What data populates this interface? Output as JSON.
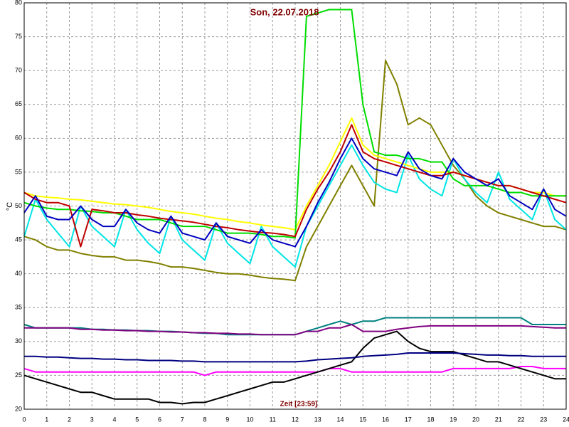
{
  "chart_data": {
    "type": "line",
    "title": "Son, 22.07.2018",
    "x_label": "Zeit [23:59]",
    "y_label": "°C",
    "x": [
      0,
      0.5,
      1,
      1.5,
      2,
      2.5,
      3,
      3.5,
      4,
      4.5,
      5,
      5.5,
      6,
      6.5,
      7,
      7.5,
      8,
      8.5,
      9,
      9.5,
      10,
      10.5,
      11,
      11.5,
      12,
      12.5,
      13,
      13.5,
      14,
      14.5,
      15,
      15.5,
      16,
      16.5,
      17,
      17.5,
      18,
      18.5,
      19,
      19.5,
      20,
      20.5,
      21,
      21.5,
      22,
      22.5,
      23,
      23.5,
      24
    ],
    "xlim": [
      0,
      24
    ],
    "xticks": [
      0,
      1,
      2,
      3,
      4,
      5,
      6,
      7,
      8,
      9,
      10,
      11,
      12,
      13,
      14,
      15,
      16,
      17,
      18,
      19,
      20,
      21,
      22,
      23,
      24
    ],
    "ylim": [
      20,
      80
    ],
    "yticks": [
      20,
      25,
      30,
      35,
      40,
      45,
      50,
      55,
      60,
      65,
      70,
      75,
      80
    ],
    "grid": true,
    "series": [
      {
        "color": "#ff00ff",
        "values": [
          26,
          25.5,
          25.5,
          25.5,
          25.5,
          25.5,
          25.5,
          25.5,
          25.5,
          25.5,
          25.5,
          25.5,
          25.5,
          25.5,
          25.5,
          25.5,
          25,
          25.5,
          25.5,
          25.5,
          25.5,
          25.5,
          25.5,
          25.5,
          25.5,
          25.5,
          25.5,
          26,
          26,
          25.5,
          25.5,
          25.5,
          25.5,
          25.5,
          25.5,
          25.5,
          25.5,
          25.5,
          26,
          26,
          26,
          26,
          26,
          26,
          26.3,
          26.3,
          26,
          26,
          26
        ]
      },
      {
        "color": "#000000",
        "values": [
          25,
          24.5,
          24,
          23.5,
          23,
          22.5,
          22.5,
          22,
          21.5,
          21.5,
          21.5,
          21.5,
          21,
          21,
          20.8,
          21,
          21,
          21.5,
          22,
          22.5,
          23,
          23.5,
          24,
          24,
          24.5,
          25,
          25.5,
          26,
          26.5,
          27,
          29,
          30.5,
          31,
          31.5,
          30,
          29,
          28.5,
          28.5,
          28.5,
          28,
          27.5,
          27,
          27,
          26.5,
          26,
          25.5,
          25,
          24.5,
          24.5
        ]
      },
      {
        "color": "#000080",
        "values": [
          27.8,
          27.8,
          27.7,
          27.7,
          27.6,
          27.5,
          27.5,
          27.4,
          27.4,
          27.3,
          27.3,
          27.2,
          27.2,
          27.2,
          27.1,
          27.1,
          27,
          27,
          27,
          27,
          27,
          27,
          27,
          27,
          27,
          27.1,
          27.3,
          27.4,
          27.5,
          27.6,
          27.8,
          27.9,
          28,
          28.1,
          28.3,
          28.3,
          28.3,
          28.3,
          28.3,
          28.2,
          28.1,
          28,
          28,
          27.9,
          27.9,
          27.8,
          27.8,
          27.8,
          27.8
        ]
      },
      {
        "color": "#008080",
        "values": [
          32.5,
          32,
          32,
          32,
          32,
          32,
          31.8,
          31.8,
          31.7,
          31.7,
          31.6,
          31.6,
          31.5,
          31.5,
          31.4,
          31.3,
          31.2,
          31.2,
          31,
          31,
          31,
          31,
          31,
          31,
          31,
          31.5,
          32,
          32.5,
          33,
          32.5,
          33,
          33,
          33.5,
          33.5,
          33.5,
          33.5,
          33.5,
          33.5,
          33.5,
          33.5,
          33.5,
          33.5,
          33.5,
          33.5,
          33.5,
          32.5,
          32.5,
          32.5,
          32.5
        ]
      },
      {
        "color": "#800080",
        "values": [
          32,
          32,
          32,
          32,
          32,
          31.8,
          31.8,
          31.7,
          31.7,
          31.6,
          31.6,
          31.5,
          31.5,
          31.4,
          31.4,
          31.3,
          31.3,
          31.2,
          31.2,
          31.1,
          31.1,
          31,
          31,
          31,
          31,
          31.5,
          31.5,
          32,
          32,
          32.5,
          31.5,
          31.5,
          31.5,
          31.8,
          32,
          32.2,
          32.3,
          32.3,
          32.3,
          32.3,
          32.3,
          32.3,
          32.3,
          32.3,
          32.3,
          32.2,
          32.1,
          32,
          32
        ]
      },
      {
        "color": "#808000",
        "values": [
          45.5,
          45,
          44,
          43.5,
          43.5,
          43,
          42.7,
          42.5,
          42.5,
          42,
          42,
          41.8,
          41.5,
          41,
          41,
          40.8,
          40.5,
          40.2,
          40,
          40,
          39.8,
          39.5,
          39.3,
          39.2,
          39,
          44,
          47,
          50,
          53,
          56,
          53,
          50,
          71.5,
          68,
          62,
          63,
          62,
          59,
          56,
          54,
          51.5,
          50,
          49,
          48.5,
          48,
          47.5,
          47,
          47,
          46.5
        ]
      },
      {
        "color": "#00e5e5",
        "values": [
          45.5,
          51,
          48,
          46,
          44,
          50,
          47,
          45.5,
          44,
          49.5,
          46.5,
          44.5,
          43,
          48.5,
          45,
          43.5,
          42,
          47.5,
          44.5,
          43,
          41.5,
          47,
          44,
          42.5,
          41,
          47,
          50,
          53,
          56,
          59,
          56,
          53.5,
          52.5,
          52,
          57.5,
          54,
          52.5,
          51.5,
          57,
          54,
          52,
          50.5,
          55,
          51,
          49.5,
          48,
          52.5,
          48,
          46.5
        ]
      },
      {
        "color": "#ffff00",
        "values": [
          52,
          51.5,
          51.3,
          51.2,
          51,
          50.9,
          50.7,
          50.5,
          50.3,
          50.2,
          50,
          49.8,
          49.5,
          49.2,
          49,
          48.8,
          48.5,
          48.2,
          48,
          47.7,
          47.5,
          47.2,
          47,
          46.8,
          46.5,
          50,
          53,
          56,
          59.5,
          63,
          59,
          57.5,
          57,
          56.5,
          56,
          55.5,
          55,
          55,
          55,
          54.5,
          54,
          53.5,
          53,
          53,
          52.5,
          52,
          52,
          51.5,
          51.5
        ]
      },
      {
        "color": "#00dd00",
        "values": [
          50.5,
          50,
          49.7,
          49.5,
          49.5,
          49.3,
          49.2,
          49,
          49,
          48.5,
          48,
          48,
          48,
          47.5,
          47,
          47,
          47,
          46.5,
          46,
          46,
          46,
          45.8,
          45.5,
          45.5,
          45.3,
          78,
          78.5,
          79,
          79,
          79,
          65,
          58,
          57.5,
          57.5,
          57,
          57,
          56.5,
          56.5,
          54,
          53,
          53,
          53,
          52.5,
          52,
          52,
          51.5,
          51.5,
          51.5,
          51.5
        ]
      },
      {
        "color": "#c00000",
        "values": [
          52,
          51,
          50.5,
          50.5,
          50,
          44,
          49.5,
          49.3,
          49,
          49,
          48.7,
          48.5,
          48.2,
          48,
          47.8,
          47.6,
          47.3,
          47,
          46.8,
          46.5,
          46.3,
          46.1,
          46,
          45.8,
          45.5,
          49.5,
          52.5,
          55,
          58,
          62,
          58,
          57,
          56.5,
          56,
          55.5,
          55,
          54.5,
          54.5,
          55,
          54.5,
          54,
          53.5,
          53,
          53,
          52.5,
          52,
          51.5,
          51,
          50.5
        ]
      },
      {
        "color": "#0000c0",
        "values": [
          49,
          51.5,
          48.5,
          48,
          48,
          50,
          48,
          47,
          47,
          49.5,
          47.5,
          46.5,
          46,
          48.5,
          46,
          45.5,
          45,
          47.5,
          45.5,
          45,
          44.5,
          46.5,
          45,
          44.5,
          44,
          47,
          50.5,
          53.5,
          57,
          60,
          57,
          55.5,
          55,
          54.5,
          58,
          55.5,
          54.5,
          54,
          57,
          55,
          54,
          53,
          54,
          51.5,
          50.5,
          49.5,
          52.5,
          49.5,
          48.5
        ]
      }
    ]
  }
}
